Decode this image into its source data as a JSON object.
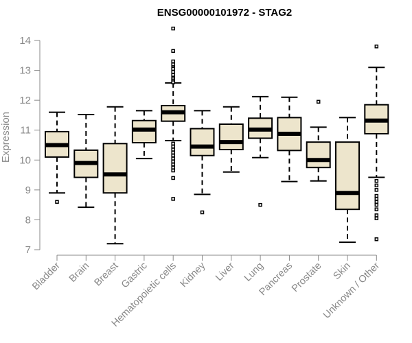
{
  "chart_data": {
    "type": "boxplot",
    "title": "ENSG00000101972 - STAG2",
    "xlabel": "",
    "ylabel": "Expression",
    "ylim": [
      7,
      14
    ],
    "yticks": [
      7,
      8,
      9,
      10,
      11,
      12,
      13,
      14
    ],
    "box_fill": "#ede5cc",
    "axis_color": "#888888",
    "categories": [
      "Bladder",
      "Brain",
      "Breast",
      "Gastric",
      "Hematopoietic cells",
      "Kidney",
      "Liver",
      "Lung",
      "Pancreas",
      "Prostate",
      "Skin",
      "Unknown / Other"
    ],
    "boxes": [
      {
        "category": "Bladder",
        "min": 8.9,
        "q1": 10.1,
        "median": 10.5,
        "q3": 10.95,
        "max": 11.6,
        "outliers": [
          8.6
        ]
      },
      {
        "category": "Brain",
        "min": 8.42,
        "q1": 9.42,
        "median": 9.9,
        "q3": 10.33,
        "max": 11.52,
        "outliers": []
      },
      {
        "category": "Breast",
        "min": 7.2,
        "q1": 8.9,
        "median": 9.52,
        "q3": 10.55,
        "max": 11.78,
        "outliers": []
      },
      {
        "category": "Gastric",
        "min": 10.05,
        "q1": 10.58,
        "median": 11.02,
        "q3": 11.32,
        "max": 11.65,
        "outliers": []
      },
      {
        "category": "Hematopoietic cells",
        "min": 10.65,
        "q1": 11.3,
        "median": 11.6,
        "q3": 11.82,
        "max": 12.58,
        "outliers": [
          14.4,
          13.65,
          13.3,
          13.2,
          13.1,
          13.05,
          12.95,
          12.85,
          12.75,
          12.7,
          12.65,
          12.6,
          10.55,
          10.45,
          10.35,
          10.25,
          10.15,
          10.05,
          9.95,
          9.85,
          9.75,
          9.65,
          9.4,
          8.7
        ]
      },
      {
        "category": "Kidney",
        "min": 8.85,
        "q1": 10.15,
        "median": 10.45,
        "q3": 11.05,
        "max": 11.65,
        "outliers": [
          8.25
        ]
      },
      {
        "category": "Liver",
        "min": 9.6,
        "q1": 10.35,
        "median": 10.6,
        "q3": 11.2,
        "max": 11.78,
        "outliers": []
      },
      {
        "category": "Lung",
        "min": 10.08,
        "q1": 10.73,
        "median": 11.02,
        "q3": 11.4,
        "max": 12.12,
        "outliers": [
          8.5
        ]
      },
      {
        "category": "Pancreas",
        "min": 9.28,
        "q1": 10.32,
        "median": 10.88,
        "q3": 11.42,
        "max": 12.1,
        "outliers": []
      },
      {
        "category": "Prostate",
        "min": 9.3,
        "q1": 9.75,
        "median": 10.0,
        "q3": 10.6,
        "max": 11.1,
        "outliers": [
          11.95
        ]
      },
      {
        "category": "Skin",
        "min": 7.25,
        "q1": 8.35,
        "median": 8.9,
        "q3": 10.6,
        "max": 11.42,
        "outliers": []
      },
      {
        "category": "Unknown / Other",
        "min": 9.42,
        "q1": 10.88,
        "median": 11.32,
        "q3": 11.85,
        "max": 13.1,
        "outliers": [
          13.8,
          9.3,
          9.15,
          9.0,
          8.8,
          8.7,
          8.6,
          8.5,
          8.35,
          8.15,
          8.05,
          7.35
        ]
      }
    ]
  }
}
